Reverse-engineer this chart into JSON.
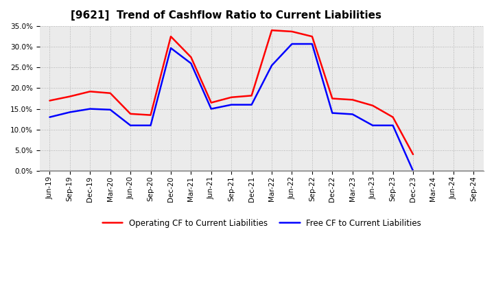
{
  "title": "[9621]  Trend of Cashflow Ratio to Current Liabilities",
  "x_labels": [
    "Jun-19",
    "Sep-19",
    "Dec-19",
    "Mar-20",
    "Jun-20",
    "Sep-20",
    "Dec-20",
    "Mar-21",
    "Jun-21",
    "Sep-21",
    "Dec-21",
    "Mar-22",
    "Jun-22",
    "Sep-22",
    "Dec-22",
    "Mar-23",
    "Jun-23",
    "Sep-23",
    "Dec-23",
    "Mar-24",
    "Jun-24",
    "Sep-24"
  ],
  "operating_cf": [
    17.0,
    18.0,
    19.2,
    18.8,
    13.8,
    13.5,
    32.5,
    27.5,
    16.5,
    17.8,
    18.2,
    34.0,
    33.7,
    32.5,
    17.5,
    17.2,
    15.8,
    13.0,
    4.0,
    null,
    null,
    null
  ],
  "free_cf": [
    13.0,
    14.2,
    15.0,
    14.8,
    11.0,
    11.0,
    29.7,
    26.0,
    15.0,
    16.0,
    16.0,
    25.5,
    30.7,
    30.7,
    14.0,
    13.7,
    11.0,
    11.0,
    0.0,
    null,
    null,
    null
  ],
  "ylim": [
    0.0,
    0.35
  ],
  "yticks": [
    0.0,
    0.05,
    0.1,
    0.15,
    0.2,
    0.25,
    0.3,
    0.35
  ],
  "operating_color": "#FF0000",
  "free_color": "#0000FF",
  "background_color": "#FFFFFF",
  "plot_bg_color": "#EBEBEB",
  "grid_color": "#AAAAAA",
  "legend_operating": "Operating CF to Current Liabilities",
  "legend_free": "Free CF to Current Liabilities",
  "title_fontsize": 11,
  "tick_fontsize": 7.5,
  "linewidth": 1.8
}
